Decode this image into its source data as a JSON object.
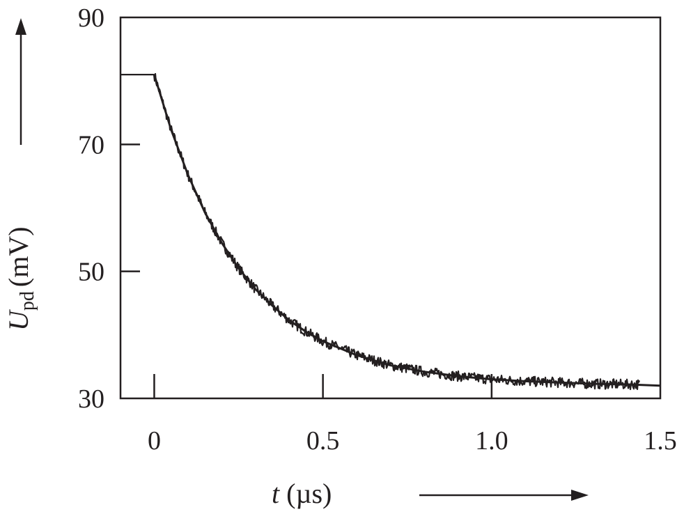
{
  "chart_data": {
    "type": "line",
    "title": "",
    "xlabel": "t (µs)",
    "xlabel_var": "t",
    "xlabel_unit": "(µs)",
    "ylabel": "U_pd (mV)",
    "ylabel_var": "U",
    "ylabel_sub": "pd",
    "ylabel_unit": "(mV)",
    "xlim": [
      -0.1,
      1.5
    ],
    "ylim": [
      30,
      90
    ],
    "xticks": [
      0,
      0.5,
      1.0,
      1.5
    ],
    "xtick_labels": [
      "0",
      "0.5",
      "1.0",
      "1.5"
    ],
    "yticks": [
      30,
      50,
      70,
      90
    ],
    "ytick_labels": [
      "30",
      "50",
      "70",
      "90"
    ],
    "grid": false,
    "color": "#231f20",
    "series": [
      {
        "kind": "measured (noisy)",
        "x": [
          -0.1,
          0,
          0.05,
          0.1,
          0.15,
          0.2,
          0.25,
          0.3,
          0.35,
          0.4,
          0.45,
          0.5,
          0.6,
          0.7,
          0.8,
          0.9,
          1.0,
          1.1,
          1.2,
          1.3,
          1.4,
          1.44
        ],
        "y": [
          81,
          81,
          72.3,
          65.2,
          59.3,
          54.5,
          50.5,
          47.2,
          44.6,
          42.3,
          40.5,
          39.0,
          36.8,
          35.2,
          34.2,
          33.5,
          33.0,
          32.7,
          32.5,
          32.3,
          32.2,
          32.2
        ]
      },
      {
        "kind": "exponential fit",
        "x": [
          0,
          0.05,
          0.1,
          0.15,
          0.2,
          0.25,
          0.3,
          0.35,
          0.4,
          0.45,
          0.5,
          0.6,
          0.7,
          0.8,
          0.9,
          1.0,
          1.1,
          1.2,
          1.3,
          1.4,
          1.5
        ],
        "y": [
          81,
          72.3,
          65.2,
          59.3,
          54.5,
          50.5,
          47.2,
          44.6,
          42.3,
          40.5,
          39.0,
          36.8,
          35.2,
          34.2,
          33.5,
          33.0,
          32.7,
          32.5,
          32.3,
          32.2,
          32.0
        ]
      }
    ]
  }
}
